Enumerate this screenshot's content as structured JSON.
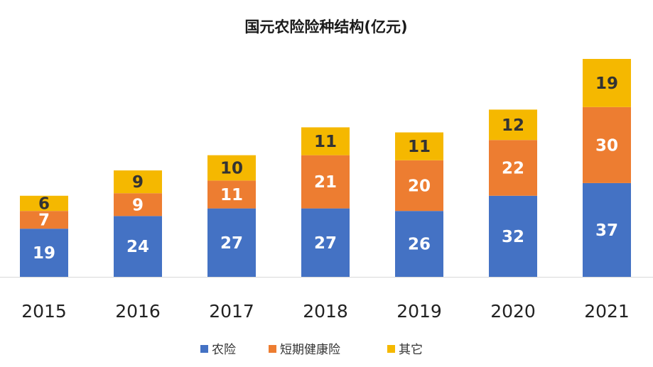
{
  "chart_data": {
    "type": "bar",
    "stacked": true,
    "title": "国元农险险种结构(亿元)",
    "xlabel": "",
    "ylabel": "",
    "categories": [
      "2015",
      "2016",
      "2017",
      "2018",
      "2019",
      "2020",
      "2021"
    ],
    "series": [
      {
        "name": "农险",
        "color": "#4472C4",
        "label_color": "#ffffff",
        "values": [
          19,
          24,
          27,
          27,
          26,
          32,
          37
        ]
      },
      {
        "name": "短期健康险",
        "color": "#ED7D31",
        "label_color": "#ffffff",
        "values": [
          7,
          9,
          11,
          21,
          20,
          22,
          30
        ]
      },
      {
        "name": "其它",
        "color": "#F5B800",
        "label_color": "#333333",
        "values": [
          6,
          9,
          10,
          11,
          11,
          12,
          19
        ]
      }
    ],
    "ylim": [
      0,
      86
    ],
    "grid": false,
    "legend": "bottom"
  }
}
